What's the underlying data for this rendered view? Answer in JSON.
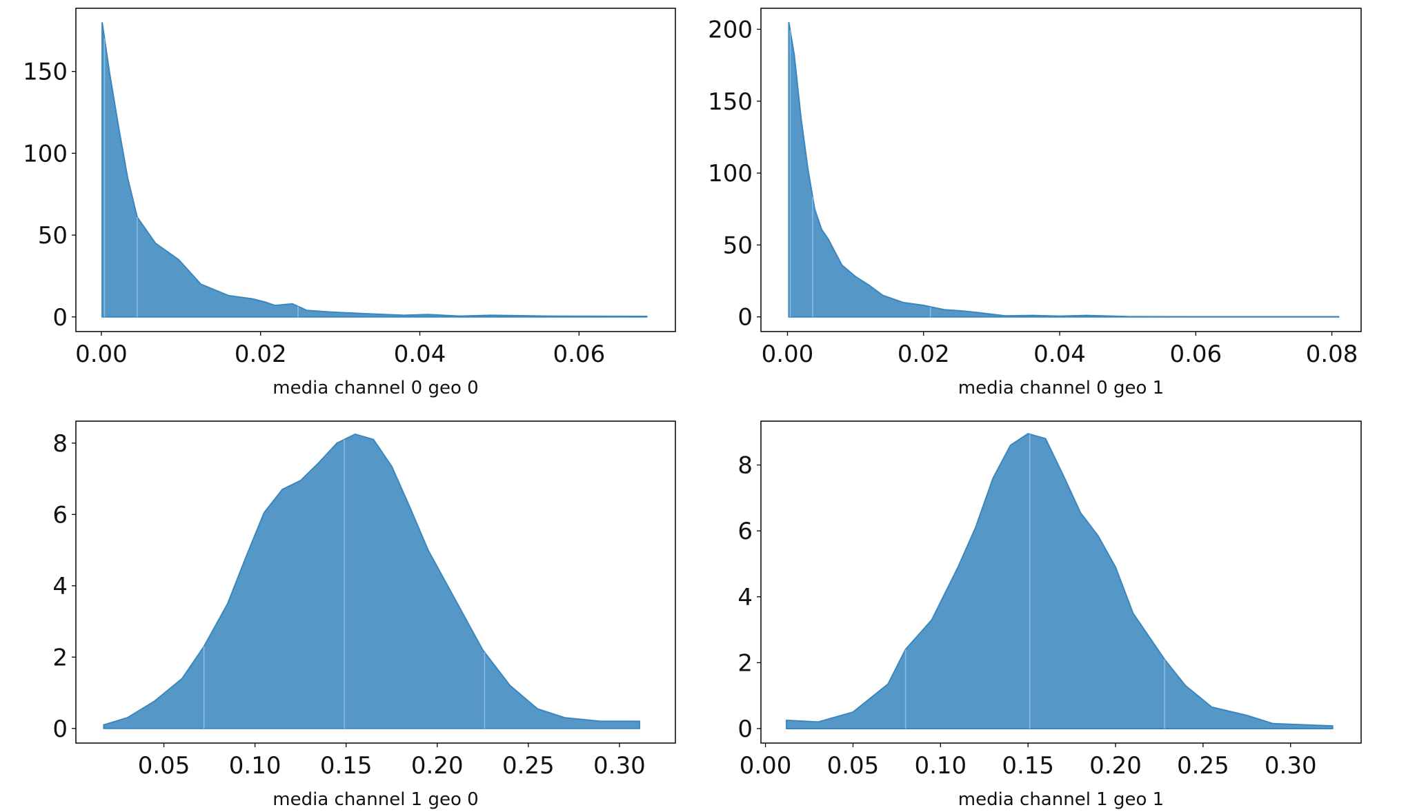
{
  "chart_data": [
    {
      "type": "area",
      "x_label": "media channel 0 geo 0",
      "color": "#5598c7",
      "line_color": "#3a86be",
      "x": [
        0.0001,
        0.001,
        0.0022,
        0.0033,
        0.0045,
        0.0068,
        0.0097,
        0.0125,
        0.016,
        0.019,
        0.0206,
        0.0218,
        0.024,
        0.0258,
        0.0287,
        0.033,
        0.038,
        0.041,
        0.045,
        0.049,
        0.056,
        0.0685
      ],
      "values": [
        180,
        150,
        115,
        85,
        61,
        45,
        35,
        20,
        13,
        11,
        9,
        7,
        8,
        4,
        3,
        2,
        1,
        1.5,
        0.5,
        1,
        0.5,
        0.3
      ],
      "vlines": [
        0.0004,
        0.0045,
        0.0247
      ],
      "xlim": [
        -0.0032,
        0.0721
      ],
      "ylim": [
        -8.95,
        188.6
      ],
      "xticks": [
        {
          "value": 0,
          "label": "0.00"
        },
        {
          "value": 0.02,
          "label": "0.02"
        },
        {
          "value": 0.04,
          "label": "0.04"
        },
        {
          "value": 0.06,
          "label": "0.06"
        }
      ],
      "yticks": [
        0,
        50,
        100,
        150
      ]
    },
    {
      "type": "area",
      "x_label": "media channel 0 geo 1",
      "color": "#5598c7",
      "line_color": "#3a86be",
      "x": [
        0.0002,
        0.001,
        0.002,
        0.003,
        0.004,
        0.005,
        0.006,
        0.008,
        0.01,
        0.012,
        0.014,
        0.017,
        0.02,
        0.023,
        0.026,
        0.028,
        0.032,
        0.036,
        0.04,
        0.044,
        0.05,
        0.06,
        0.081
      ],
      "values": [
        205,
        182,
        138,
        103,
        75,
        61,
        54,
        36,
        28,
        22,
        15,
        10,
        8,
        5,
        4,
        3,
        0.7,
        1,
        0.5,
        1,
        0.2,
        0.1,
        0.1
      ],
      "vlines": [
        0.0004,
        0.0037,
        0.021
      ],
      "xlim": [
        -0.0039,
        0.0843
      ],
      "ylim": [
        -10.2,
        214.6
      ],
      "xticks": [
        {
          "value": 0,
          "label": "0.00"
        },
        {
          "value": 0.02,
          "label": "0.02"
        },
        {
          "value": 0.04,
          "label": "0.04"
        },
        {
          "value": 0.06,
          "label": "0.06"
        },
        {
          "value": 0.08,
          "label": "0.08"
        }
      ],
      "yticks": [
        0,
        50,
        100,
        150,
        200
      ]
    },
    {
      "type": "area",
      "x_label": "media channel 1 geo 0",
      "color": "#5598c7",
      "line_color": "#3a86be",
      "x": [
        0.017,
        0.03,
        0.045,
        0.06,
        0.072,
        0.085,
        0.095,
        0.105,
        0.115,
        0.125,
        0.135,
        0.145,
        0.155,
        0.165,
        0.175,
        0.185,
        0.195,
        0.21,
        0.225,
        0.24,
        0.255,
        0.27,
        0.29,
        0.311
      ],
      "values": [
        0.1,
        0.3,
        0.77,
        1.4,
        2.3,
        3.5,
        4.8,
        6.05,
        6.7,
        6.95,
        7.45,
        8.0,
        8.25,
        8.1,
        7.35,
        6.2,
        5.0,
        3.6,
        2.2,
        1.2,
        0.55,
        0.3,
        0.2,
        0.2
      ],
      "vlines": [
        0.072,
        0.149,
        0.226
      ],
      "xlim": [
        0.0017,
        0.3307
      ],
      "ylim": [
        -0.41,
        8.615
      ],
      "xticks": [
        {
          "value": 0.05,
          "label": "0.05"
        },
        {
          "value": 0.1,
          "label": "0.10"
        },
        {
          "value": 0.15,
          "label": "0.15"
        },
        {
          "value": 0.2,
          "label": "0.20"
        },
        {
          "value": 0.25,
          "label": "0.25"
        },
        {
          "value": 0.3,
          "label": "0.30"
        }
      ],
      "yticks": [
        0,
        2,
        4,
        6,
        8
      ]
    },
    {
      "type": "area",
      "x_label": "media channel 1 geo 1",
      "color": "#5598c7",
      "line_color": "#3a86be",
      "x": [
        0.012,
        0.03,
        0.05,
        0.07,
        0.08,
        0.095,
        0.11,
        0.12,
        0.13,
        0.14,
        0.15,
        0.16,
        0.17,
        0.18,
        0.19,
        0.2,
        0.21,
        0.228,
        0.24,
        0.255,
        0.275,
        0.29,
        0.324
      ],
      "values": [
        0.25,
        0.2,
        0.5,
        1.35,
        2.4,
        3.3,
        4.9,
        6.1,
        7.6,
        8.6,
        8.95,
        8.8,
        7.7,
        6.55,
        5.85,
        4.9,
        3.5,
        2.1,
        1.3,
        0.65,
        0.4,
        0.15,
        0.08
      ],
      "vlines": [
        0.08,
        0.151,
        0.228
      ],
      "xlim": [
        -0.0026,
        0.3403
      ],
      "ylim": [
        -0.44,
        9.33
      ],
      "xticks": [
        {
          "value": 0,
          "label": "0.00"
        },
        {
          "value": 0.05,
          "label": "0.05"
        },
        {
          "value": 0.1,
          "label": "0.10"
        },
        {
          "value": 0.15,
          "label": "0.15"
        },
        {
          "value": 0.2,
          "label": "0.20"
        },
        {
          "value": 0.25,
          "label": "0.25"
        },
        {
          "value": 0.3,
          "label": "0.30"
        }
      ],
      "yticks": [
        0,
        2,
        4,
        6,
        8
      ]
    }
  ]
}
